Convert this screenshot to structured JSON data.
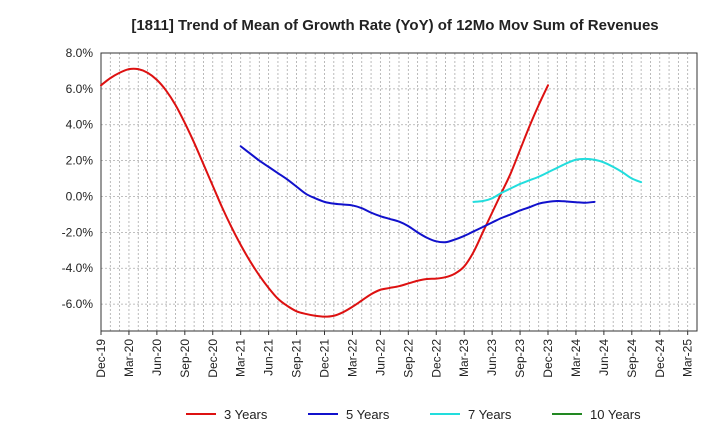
{
  "chart_data": {
    "type": "line",
    "title": "[1811]  Trend of Mean of Growth Rate (YoY) of 12Mo Mov Sum of Revenues",
    "xlabel": "",
    "ylabel": "",
    "ylim": [
      -7.5,
      8.0
    ],
    "y_ticks": [
      8.0,
      6.0,
      4.0,
      2.0,
      0.0,
      -2.0,
      -4.0,
      -6.0
    ],
    "y_tick_labels": [
      "8.0%",
      "6.0%",
      "4.0%",
      "2.0%",
      "0.0%",
      "-2.0%",
      "-4.0%",
      "-6.0%"
    ],
    "x_tick_labels": [
      "Dec-19",
      "Mar-20",
      "Jun-20",
      "Sep-20",
      "Dec-20",
      "Mar-21",
      "Jun-21",
      "Sep-21",
      "Dec-21",
      "Mar-22",
      "Jun-22",
      "Sep-22",
      "Dec-22",
      "Mar-23",
      "Jun-23",
      "Sep-23",
      "Dec-23",
      "Mar-24",
      "Jun-24",
      "Sep-24",
      "Dec-24",
      "Mar-25"
    ],
    "x_start": "Dec-19",
    "n_months": 64,
    "grid": true,
    "legend_position": "bottom",
    "series": [
      {
        "name": "3 Years",
        "color": "#dd1111",
        "start_index": 0,
        "values": [
          6.2,
          6.6,
          6.9,
          7.1,
          7.1,
          6.9,
          6.5,
          5.9,
          5.1,
          4.1,
          3.0,
          1.8,
          0.6,
          -0.6,
          -1.7,
          -2.7,
          -3.6,
          -4.4,
          -5.1,
          -5.7,
          -6.1,
          -6.4,
          -6.55,
          -6.65,
          -6.7,
          -6.65,
          -6.45,
          -6.15,
          -5.8,
          -5.45,
          -5.2,
          -5.1,
          -5.0,
          -4.85,
          -4.7,
          -4.6,
          -4.58,
          -4.5,
          -4.3,
          -3.9,
          -3.1,
          -2.0,
          -0.9,
          0.2,
          1.3,
          2.6,
          3.9,
          5.1,
          6.2
        ]
      },
      {
        "name": "5 Years",
        "color": "#1111cc",
        "start_index": 15,
        "values": [
          2.8,
          2.4,
          2.0,
          1.65,
          1.3,
          0.95,
          0.55,
          0.15,
          -0.1,
          -0.3,
          -0.4,
          -0.45,
          -0.5,
          -0.65,
          -0.9,
          -1.1,
          -1.25,
          -1.4,
          -1.65,
          -2.0,
          -2.3,
          -2.5,
          -2.55,
          -2.4,
          -2.2,
          -1.95,
          -1.7,
          -1.45,
          -1.2,
          -1.0,
          -0.78,
          -0.6,
          -0.4,
          -0.3,
          -0.25,
          -0.28,
          -0.32,
          -0.35,
          -0.3
        ]
      },
      {
        "name": "7 Years",
        "color": "#22dddd",
        "start_index": 40,
        "values": [
          -0.3,
          -0.25,
          -0.1,
          0.2,
          0.45,
          0.7,
          0.9,
          1.1,
          1.35,
          1.6,
          1.85,
          2.05,
          2.1,
          2.05,
          1.9,
          1.65,
          1.35,
          1.0,
          0.8
        ]
      },
      {
        "name": "10 Years",
        "color": "#228822",
        "start_index": 0,
        "values": []
      }
    ]
  }
}
